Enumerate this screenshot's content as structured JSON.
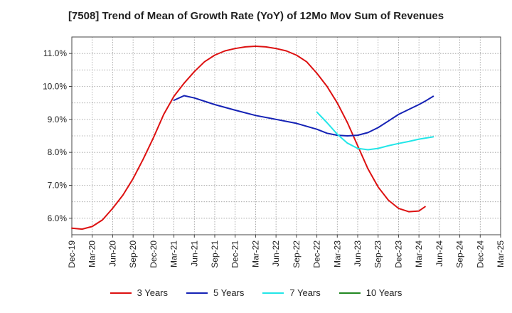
{
  "chart_data": {
    "type": "line",
    "title": "[7508]  Trend of Mean of Growth Rate (YoY) of 12Mo Mov Sum of Revenues",
    "xlabel": "",
    "ylabel": "",
    "x_ticks": [
      "Dec-19",
      "Mar-20",
      "Jun-20",
      "Sep-20",
      "Dec-20",
      "Mar-21",
      "Jun-21",
      "Sep-21",
      "Dec-21",
      "Mar-22",
      "Jun-22",
      "Sep-22",
      "Dec-22",
      "Mar-23",
      "Jun-23",
      "Sep-23",
      "Dec-23",
      "Mar-24",
      "Jun-24",
      "Sep-24",
      "Dec-24",
      "Mar-25"
    ],
    "y_ticks": [
      "6.0%",
      "7.0%",
      "8.0%",
      "9.0%",
      "10.0%",
      "11.0%"
    ],
    "y_tick_values": [
      6,
      7,
      8,
      9,
      10,
      11
    ],
    "ylim": [
      5.5,
      11.5
    ],
    "xlim": [
      0,
      21
    ],
    "grid": true,
    "legend_position": "bottom",
    "series": [
      {
        "name": "3 Years",
        "color": "#dd1111",
        "points": [
          [
            0,
            5.7
          ],
          [
            0.5,
            5.67
          ],
          [
            1,
            5.75
          ],
          [
            1.5,
            5.95
          ],
          [
            2,
            6.3
          ],
          [
            2.5,
            6.7
          ],
          [
            3,
            7.2
          ],
          [
            3.5,
            7.8
          ],
          [
            4,
            8.45
          ],
          [
            4.5,
            9.15
          ],
          [
            5,
            9.7
          ],
          [
            5.5,
            10.1
          ],
          [
            6,
            10.45
          ],
          [
            6.5,
            10.75
          ],
          [
            7,
            10.95
          ],
          [
            7.5,
            11.08
          ],
          [
            8,
            11.15
          ],
          [
            8.5,
            11.2
          ],
          [
            9,
            11.22
          ],
          [
            9.5,
            11.2
          ],
          [
            10,
            11.15
          ],
          [
            10.5,
            11.08
          ],
          [
            11,
            10.95
          ],
          [
            11.5,
            10.75
          ],
          [
            12,
            10.4
          ],
          [
            12.5,
            10.0
          ],
          [
            13,
            9.5
          ],
          [
            13.5,
            8.9
          ],
          [
            14,
            8.2
          ],
          [
            14.5,
            7.5
          ],
          [
            15,
            6.95
          ],
          [
            15.5,
            6.55
          ],
          [
            16,
            6.3
          ],
          [
            16.5,
            6.2
          ],
          [
            17,
            6.22
          ],
          [
            17.3,
            6.35
          ]
        ]
      },
      {
        "name": "5 Years",
        "color": "#1522b5",
        "points": [
          [
            5,
            9.58
          ],
          [
            5.5,
            9.72
          ],
          [
            6,
            9.65
          ],
          [
            7,
            9.45
          ],
          [
            8,
            9.28
          ],
          [
            9,
            9.12
          ],
          [
            10,
            9.0
          ],
          [
            11,
            8.88
          ],
          [
            12,
            8.7
          ],
          [
            12.5,
            8.58
          ],
          [
            13,
            8.52
          ],
          [
            13.5,
            8.5
          ],
          [
            14,
            8.52
          ],
          [
            14.5,
            8.6
          ],
          [
            15,
            8.75
          ],
          [
            15.5,
            8.95
          ],
          [
            16,
            9.15
          ],
          [
            16.5,
            9.3
          ],
          [
            17,
            9.45
          ],
          [
            17.3,
            9.55
          ],
          [
            17.7,
            9.7
          ]
        ]
      },
      {
        "name": "7 Years",
        "color": "#22e6e8",
        "points": [
          [
            12,
            9.22
          ],
          [
            12.5,
            8.9
          ],
          [
            13,
            8.55
          ],
          [
            13.5,
            8.28
          ],
          [
            14,
            8.12
          ],
          [
            14.5,
            8.08
          ],
          [
            15,
            8.12
          ],
          [
            15.5,
            8.2
          ],
          [
            16,
            8.27
          ],
          [
            16.5,
            8.33
          ],
          [
            17,
            8.4
          ],
          [
            17.7,
            8.47
          ]
        ]
      },
      {
        "name": "10 Years",
        "color": "#228822",
        "points": []
      }
    ]
  }
}
